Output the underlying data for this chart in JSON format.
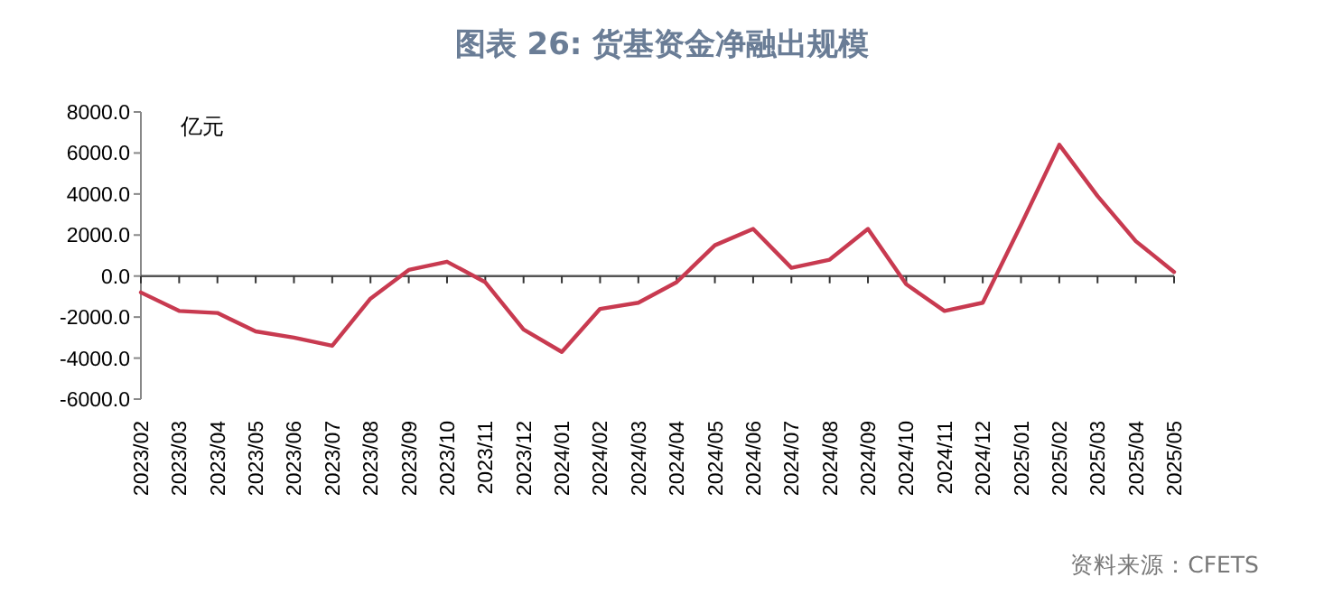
{
  "chart_data": {
    "type": "line",
    "title": "图表 26: 货基资金净融出规模",
    "ylabel": "亿元",
    "categories": [
      "2023/02",
      "2023/03",
      "2023/04",
      "2023/05",
      "2023/06",
      "2023/07",
      "2023/08",
      "2023/09",
      "2023/10",
      "2023/11",
      "2023/12",
      "2024/01",
      "2024/02",
      "2024/03",
      "2024/04",
      "2024/05",
      "2024/06",
      "2024/07",
      "2024/08",
      "2024/09",
      "2024/10",
      "2024/11",
      "2024/12",
      "2025/01",
      "2025/02",
      "2025/03",
      "2025/04",
      "2025/05"
    ],
    "series": [
      {
        "color": "#c83a50",
        "values": [
          -800,
          -1700,
          -1800,
          -2700,
          -3000,
          -3400,
          -1100,
          300,
          700,
          -300,
          -2600,
          -3700,
          -1600,
          -1300,
          -300,
          1500,
          2300,
          400,
          800,
          2300,
          -400,
          -1700,
          -1300,
          2500,
          6400,
          3900,
          1700,
          200
        ]
      }
    ],
    "ylim": [
      -6000,
      8000
    ],
    "yticks": [
      {
        "value": -6000,
        "label": "-6000.0"
      },
      {
        "value": -4000,
        "label": "-4000.0"
      },
      {
        "value": -2000,
        "label": "-2000.0"
      },
      {
        "value": 0,
        "label": "0.0"
      },
      {
        "value": 2000,
        "label": "2000.0"
      },
      {
        "value": 4000,
        "label": "4000.0"
      },
      {
        "value": 6000,
        "label": "6000.0"
      },
      {
        "value": 8000,
        "label": "8000.0"
      }
    ],
    "annotations": [
      "资料来源：CFETS"
    ],
    "marker": "none",
    "line_style": "solid"
  }
}
